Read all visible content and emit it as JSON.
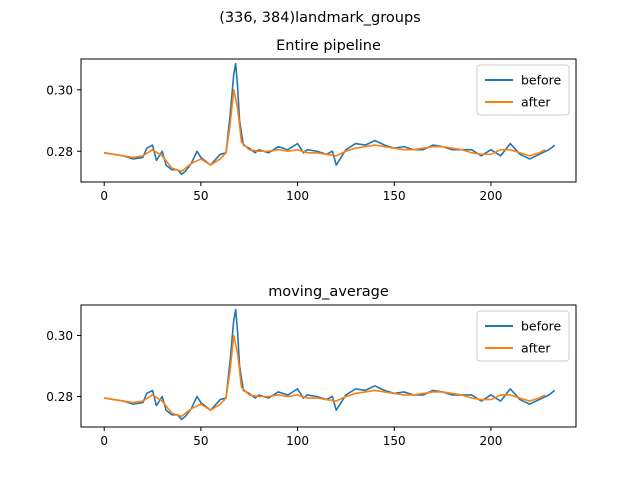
{
  "figure": {
    "suptitle": "(336, 384)landmark_groups"
  },
  "colors": {
    "before": "#1f77b4",
    "after": "#ff7f0e",
    "axes": "#000000",
    "background": "#ffffff"
  },
  "chart_data": [
    {
      "type": "line",
      "title": "Entire pipeline",
      "xlabel": "",
      "ylabel": "",
      "xlim": [
        -12,
        244
      ],
      "ylim": [
        0.27,
        0.31
      ],
      "xticks": [
        0,
        50,
        100,
        150,
        200
      ],
      "yticks": [
        0.28,
        0.3
      ],
      "ytick_labels": [
        "0.28",
        "0.30"
      ],
      "grid": false,
      "legend": "top-right",
      "series": [
        {
          "name": "before",
          "x": [
            0,
            5,
            10,
            15,
            20,
            22,
            25,
            27,
            30,
            32,
            35,
            38,
            40,
            42,
            45,
            48,
            50,
            55,
            60,
            63,
            65,
            67,
            68,
            69,
            70,
            72,
            75,
            78,
            80,
            85,
            90,
            95,
            100,
            103,
            105,
            110,
            115,
            118,
            120,
            125,
            130,
            135,
            140,
            145,
            150,
            155,
            160,
            165,
            170,
            175,
            180,
            185,
            190,
            195,
            200,
            205,
            210,
            215,
            220,
            225,
            230,
            233
          ],
          "y": [
            0.2795,
            0.279,
            0.2785,
            0.2775,
            0.278,
            0.281,
            0.282,
            0.277,
            0.28,
            0.2755,
            0.274,
            0.274,
            0.2725,
            0.2735,
            0.276,
            0.28,
            0.278,
            0.2755,
            0.279,
            0.2795,
            0.291,
            0.305,
            0.3085,
            0.301,
            0.29,
            0.282,
            0.281,
            0.2795,
            0.2805,
            0.2795,
            0.2815,
            0.2805,
            0.2825,
            0.2795,
            0.2805,
            0.28,
            0.279,
            0.28,
            0.2755,
            0.2805,
            0.2825,
            0.282,
            0.2835,
            0.282,
            0.281,
            0.2815,
            0.2805,
            0.2805,
            0.282,
            0.2815,
            0.2805,
            0.2805,
            0.2805,
            0.2785,
            0.2805,
            0.2785,
            0.2825,
            0.279,
            0.2775,
            0.279,
            0.2805,
            0.282
          ]
        },
        {
          "name": "after",
          "x": [
            0,
            5,
            10,
            15,
            20,
            25,
            30,
            35,
            40,
            45,
            50,
            55,
            60,
            63,
            65,
            67,
            69,
            71,
            75,
            80,
            85,
            90,
            95,
            100,
            105,
            110,
            115,
            120,
            125,
            130,
            135,
            140,
            145,
            150,
            155,
            160,
            165,
            170,
            175,
            180,
            185,
            190,
            195,
            200,
            205,
            210,
            215,
            220,
            225,
            228
          ],
          "y": [
            0.2795,
            0.279,
            0.2785,
            0.278,
            0.2785,
            0.2805,
            0.2785,
            0.2745,
            0.2735,
            0.276,
            0.2775,
            0.2755,
            0.2775,
            0.2795,
            0.288,
            0.3,
            0.294,
            0.283,
            0.2805,
            0.28,
            0.28,
            0.2805,
            0.28,
            0.2805,
            0.2795,
            0.2795,
            0.279,
            0.2785,
            0.28,
            0.281,
            0.2815,
            0.282,
            0.2815,
            0.281,
            0.2805,
            0.2805,
            0.281,
            0.2815,
            0.2815,
            0.281,
            0.2805,
            0.2795,
            0.279,
            0.279,
            0.2805,
            0.2805,
            0.2795,
            0.2785,
            0.2795,
            0.2805
          ]
        }
      ]
    },
    {
      "type": "line",
      "title": "moving_average",
      "xlabel": "",
      "ylabel": "",
      "xlim": [
        -12,
        244
      ],
      "ylim": [
        0.27,
        0.31
      ],
      "xticks": [
        0,
        50,
        100,
        150,
        200
      ],
      "yticks": [
        0.28,
        0.3
      ],
      "ytick_labels": [
        "0.28",
        "0.30"
      ],
      "grid": false,
      "legend": "top-right",
      "series": [
        {
          "name": "before",
          "x": [
            0,
            5,
            10,
            15,
            20,
            22,
            25,
            27,
            30,
            32,
            35,
            38,
            40,
            42,
            45,
            48,
            50,
            55,
            60,
            63,
            65,
            67,
            68,
            69,
            70,
            72,
            75,
            78,
            80,
            85,
            90,
            95,
            100,
            103,
            105,
            110,
            115,
            118,
            120,
            125,
            130,
            135,
            140,
            145,
            150,
            155,
            160,
            165,
            170,
            175,
            180,
            185,
            190,
            195,
            200,
            205,
            210,
            215,
            220,
            225,
            230,
            233
          ],
          "y": [
            0.2795,
            0.279,
            0.2785,
            0.2775,
            0.278,
            0.281,
            0.282,
            0.277,
            0.28,
            0.2755,
            0.274,
            0.274,
            0.2725,
            0.2735,
            0.276,
            0.28,
            0.278,
            0.2755,
            0.279,
            0.2795,
            0.291,
            0.305,
            0.3085,
            0.301,
            0.29,
            0.282,
            0.281,
            0.2795,
            0.2805,
            0.2795,
            0.2815,
            0.2805,
            0.2825,
            0.2795,
            0.2805,
            0.28,
            0.279,
            0.28,
            0.2755,
            0.2805,
            0.2825,
            0.282,
            0.2835,
            0.282,
            0.281,
            0.2815,
            0.2805,
            0.2805,
            0.282,
            0.2815,
            0.2805,
            0.2805,
            0.2805,
            0.2785,
            0.2805,
            0.2785,
            0.2825,
            0.279,
            0.2775,
            0.279,
            0.2805,
            0.282
          ]
        },
        {
          "name": "after",
          "x": [
            0,
            5,
            10,
            15,
            20,
            25,
            30,
            35,
            40,
            45,
            50,
            55,
            60,
            63,
            65,
            67,
            69,
            71,
            75,
            80,
            85,
            90,
            95,
            100,
            105,
            110,
            115,
            120,
            125,
            130,
            135,
            140,
            145,
            150,
            155,
            160,
            165,
            170,
            175,
            180,
            185,
            190,
            195,
            200,
            205,
            210,
            215,
            220,
            225,
            228
          ],
          "y": [
            0.2795,
            0.279,
            0.2785,
            0.278,
            0.2785,
            0.2805,
            0.2785,
            0.2745,
            0.2735,
            0.276,
            0.2775,
            0.2755,
            0.2775,
            0.2795,
            0.288,
            0.3,
            0.294,
            0.283,
            0.2805,
            0.28,
            0.28,
            0.2805,
            0.28,
            0.2805,
            0.2795,
            0.2795,
            0.279,
            0.2785,
            0.28,
            0.281,
            0.2815,
            0.282,
            0.2815,
            0.281,
            0.2805,
            0.2805,
            0.281,
            0.2815,
            0.2815,
            0.281,
            0.2805,
            0.2795,
            0.279,
            0.279,
            0.2805,
            0.2805,
            0.2795,
            0.2785,
            0.2795,
            0.2805
          ]
        }
      ]
    }
  ]
}
